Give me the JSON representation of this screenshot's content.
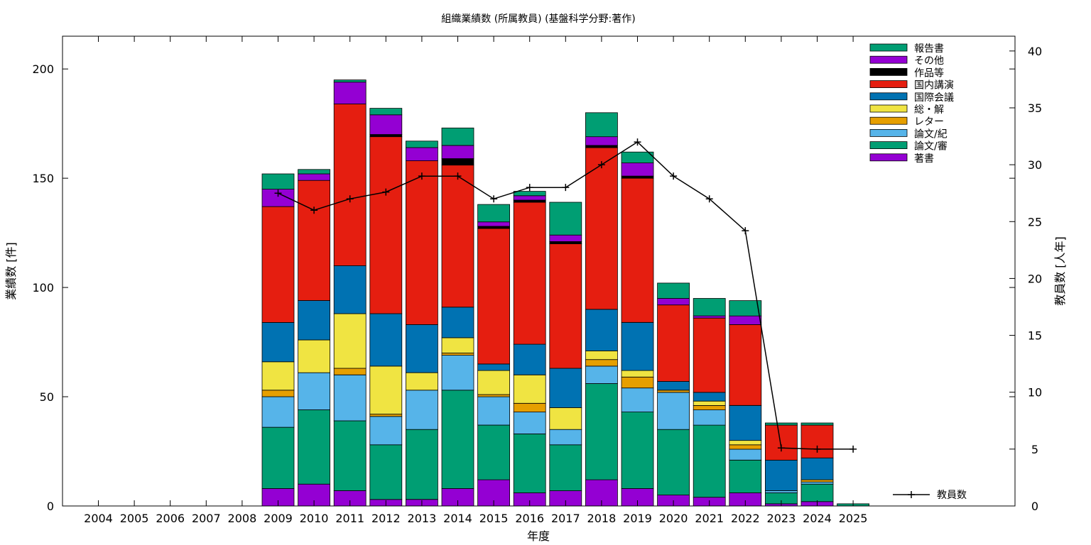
{
  "chart_data": {
    "type": "bar",
    "stacked": true,
    "title": "組織業績数 (所属教員) (基盤科学分野:著作)",
    "xlabel": "年度",
    "ylabel": "業績数 [件]",
    "y2label": "教員数 [人年]",
    "ylim": [
      0,
      215
    ],
    "y2lim": [
      0,
      41.3
    ],
    "yticks": [
      0,
      50,
      100,
      150,
      200
    ],
    "y2ticks": [
      0,
      5,
      10,
      15,
      20,
      25,
      30,
      35,
      40
    ],
    "grid": false,
    "legend_position": "top-right",
    "categories": [
      "2004",
      "2005",
      "2006",
      "2007",
      "2008",
      "2009",
      "2010",
      "2011",
      "2012",
      "2013",
      "2014",
      "2015",
      "2016",
      "2017",
      "2018",
      "2019",
      "2020",
      "2021",
      "2022",
      "2023",
      "2024",
      "2025"
    ],
    "series": [
      {
        "name": "著書",
        "color": "#9400d3",
        "values": [
          0,
          0,
          0,
          0,
          0,
          8,
          10,
          7,
          3,
          3,
          8,
          12,
          6,
          7,
          12,
          8,
          5,
          4,
          6,
          1,
          2,
          0
        ]
      },
      {
        "name": "論文/審",
        "color": "#009e73",
        "values": [
          0,
          0,
          0,
          0,
          0,
          28,
          34,
          32,
          25,
          32,
          45,
          25,
          27,
          21,
          44,
          35,
          30,
          33,
          15,
          5,
          8,
          1
        ]
      },
      {
        "name": "論文/紀",
        "color": "#56b4e9",
        "values": [
          0,
          0,
          0,
          0,
          0,
          14,
          17,
          21,
          13,
          18,
          16,
          13,
          10,
          7,
          8,
          11,
          17,
          7,
          5,
          1,
          1,
          0
        ]
      },
      {
        "name": "レター",
        "color": "#e69f00",
        "values": [
          0,
          0,
          0,
          0,
          0,
          3,
          0,
          3,
          1,
          0,
          1,
          1,
          4,
          0,
          3,
          5,
          1,
          2,
          2,
          0,
          1,
          0
        ]
      },
      {
        "name": "総・解",
        "color": "#f0e442",
        "values": [
          0,
          0,
          0,
          0,
          0,
          13,
          15,
          25,
          22,
          8,
          7,
          11,
          13,
          10,
          4,
          3,
          0,
          2,
          2,
          0,
          0,
          0
        ]
      },
      {
        "name": "国際会議",
        "color": "#0072b2",
        "values": [
          0,
          0,
          0,
          0,
          0,
          18,
          18,
          22,
          24,
          22,
          14,
          3,
          14,
          18,
          19,
          22,
          4,
          4,
          16,
          14,
          10,
          0
        ]
      },
      {
        "name": "国内講演",
        "color": "#e51e10",
        "values": [
          0,
          0,
          0,
          0,
          0,
          53,
          55,
          74,
          81,
          75,
          65,
          62,
          65,
          57,
          74,
          66,
          35,
          34,
          37,
          16,
          15,
          0
        ]
      },
      {
        "name": "作品等",
        "color": "#000000",
        "values": [
          0,
          0,
          0,
          0,
          0,
          0,
          0,
          0,
          1,
          0,
          3,
          1,
          1,
          1,
          1,
          1,
          0,
          0,
          0,
          0,
          0,
          0
        ]
      },
      {
        "name": "その他",
        "color": "#9400d3",
        "values": [
          0,
          0,
          0,
          0,
          0,
          8,
          3,
          10,
          9,
          6,
          6,
          2,
          2,
          3,
          4,
          6,
          3,
          1,
          4,
          0,
          0,
          0
        ]
      },
      {
        "name": "報告書",
        "color": "#009e73",
        "values": [
          0,
          0,
          0,
          0,
          0,
          7,
          2,
          1,
          3,
          3,
          8,
          8,
          2,
          15,
          11,
          5,
          7,
          8,
          7,
          1,
          1,
          0
        ]
      }
    ],
    "line_series": {
      "name": "教員数",
      "axis": "y2",
      "categories": [
        "2009",
        "2010",
        "2011",
        "2012",
        "2013",
        "2014",
        "2015",
        "2016",
        "2017",
        "2018",
        "2019",
        "2020",
        "2021",
        "2022",
        "2023",
        "2024",
        "2025"
      ],
      "values": [
        27.5,
        26,
        27,
        27.6,
        29,
        29,
        27,
        28,
        28,
        30,
        32,
        29,
        27,
        24.2,
        5.1,
        5,
        5
      ]
    }
  }
}
